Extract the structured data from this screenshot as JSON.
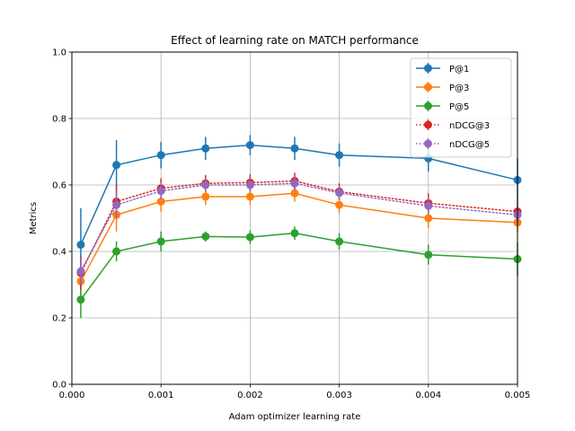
{
  "chart_data": {
    "type": "line",
    "title": "Effect of learning rate on MATCH performance",
    "xlabel": "Adam optimizer learning rate",
    "ylabel": "Metrics",
    "xlim": [
      0.0,
      0.005
    ],
    "ylim": [
      0.0,
      1.0
    ],
    "xticks": [
      "0.000",
      "0.001",
      "0.002",
      "0.003",
      "0.004",
      "0.005"
    ],
    "yticks": [
      "0.0",
      "0.2",
      "0.4",
      "0.6",
      "0.8",
      "1.0"
    ],
    "grid": true,
    "legend_position": "top-right",
    "x": [
      0.0001,
      0.0005,
      0.001,
      0.0015,
      0.002,
      0.0025,
      0.003,
      0.004,
      0.005
    ],
    "series": [
      {
        "name": "P@1",
        "color": "#1f77b4",
        "style": "solid",
        "values": [
          0.42,
          0.66,
          0.69,
          0.71,
          0.72,
          0.71,
          0.69,
          0.68,
          0.615
        ],
        "errors": [
          0.11,
          0.075,
          0.04,
          0.035,
          0.03,
          0.035,
          0.035,
          0.04,
          0.065
        ]
      },
      {
        "name": "P@3",
        "color": "#ff7f0e",
        "style": "solid",
        "values": [
          0.31,
          0.51,
          0.55,
          0.565,
          0.565,
          0.575,
          0.54,
          0.5,
          0.487
        ],
        "errors": [
          0.04,
          0.05,
          0.03,
          0.025,
          0.025,
          0.025,
          0.025,
          0.03,
          0.03
        ]
      },
      {
        "name": "P@5",
        "color": "#2ca02c",
        "style": "solid",
        "values": [
          0.255,
          0.4,
          0.43,
          0.445,
          0.443,
          0.455,
          0.43,
          0.39,
          0.377
        ],
        "errors": [
          0.055,
          0.03,
          0.03,
          0.015,
          0.02,
          0.02,
          0.025,
          0.03,
          0.05
        ]
      },
      {
        "name": "nDCG@3",
        "color": "#d62728",
        "style": "dotted",
        "values": [
          0.335,
          0.55,
          0.59,
          0.605,
          0.607,
          0.612,
          0.58,
          0.545,
          0.52
        ],
        "errors": [
          0.05,
          0.05,
          0.03,
          0.025,
          0.025,
          0.025,
          0.025,
          0.03,
          0.03
        ]
      },
      {
        "name": "nDCG@5",
        "color": "#9467bd",
        "style": "dotted",
        "values": [
          0.34,
          0.54,
          0.582,
          0.6,
          0.6,
          0.605,
          0.576,
          0.537,
          0.51
        ],
        "errors": [
          0.04,
          0.04,
          0.025,
          0.02,
          0.02,
          0.02,
          0.02,
          0.025,
          0.025
        ]
      }
    ]
  }
}
